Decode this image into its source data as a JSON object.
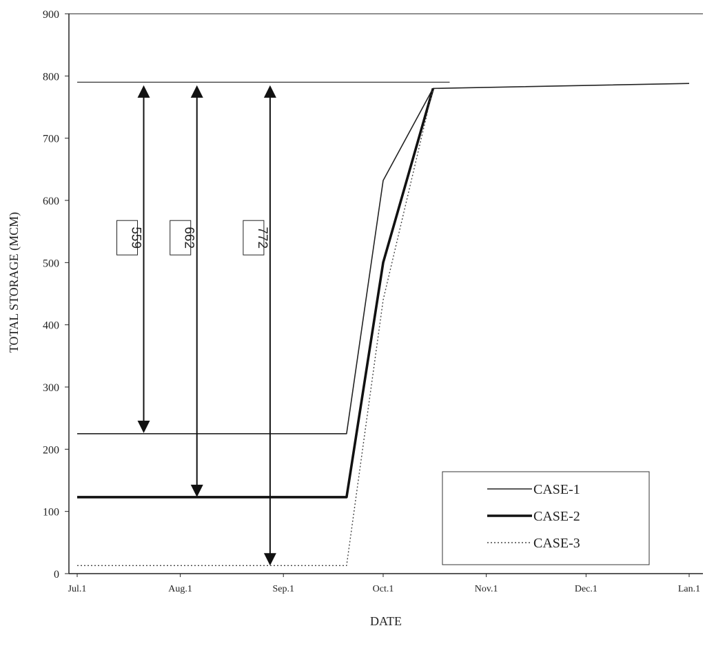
{
  "chart_data": {
    "type": "line",
    "title": "",
    "xlabel": "DATE",
    "ylabel": "TOTAL STORAGE (MCM)",
    "ylim": [
      0,
      900
    ],
    "yticks": [
      0,
      100,
      200,
      300,
      400,
      500,
      600,
      700,
      800,
      900
    ],
    "xlim": [
      "Jul.1",
      "Lan.1"
    ],
    "xticks": [
      "Jul.1",
      "Aug.1",
      "Sep.1",
      "Oct.1",
      "Nov.1",
      "Dec.1",
      "Lan.1"
    ],
    "grid": false,
    "legend_position": "bottom-right",
    "max_storage_line": {
      "value": 790,
      "x": [
        "Jul.1",
        "Oct.21"
      ]
    },
    "series": [
      {
        "name": "CASE-1",
        "style": "thin-solid",
        "color": "#222222",
        "x": [
          "Jul.1",
          "Sep.20",
          "Oct.1",
          "Oct.16",
          "Jan.1"
        ],
        "y": [
          225,
          225,
          632,
          780,
          788
        ]
      },
      {
        "name": "CASE-2",
        "style": "thick-solid",
        "color": "#111111",
        "x": [
          "Jul.1",
          "Sep.20",
          "Oct.1",
          "Oct.16"
        ],
        "y": [
          123,
          123,
          500,
          780
        ]
      },
      {
        "name": "CASE-3",
        "style": "dotted",
        "color": "#444444",
        "x": [
          "Jul.1",
          "Sep.20",
          "Oct.1",
          "Oct.16"
        ],
        "y": [
          13,
          13,
          440,
          780
        ]
      }
    ],
    "annotations": [
      {
        "label": "559",
        "x": "Jul.21",
        "y_from": 785,
        "y_to": 226
      },
      {
        "label": "662",
        "x": "Aug.6",
        "y_from": 785,
        "y_to": 123
      },
      {
        "label": "772",
        "x": "Aug.28",
        "y_from": 785,
        "y_to": 13
      }
    ]
  }
}
